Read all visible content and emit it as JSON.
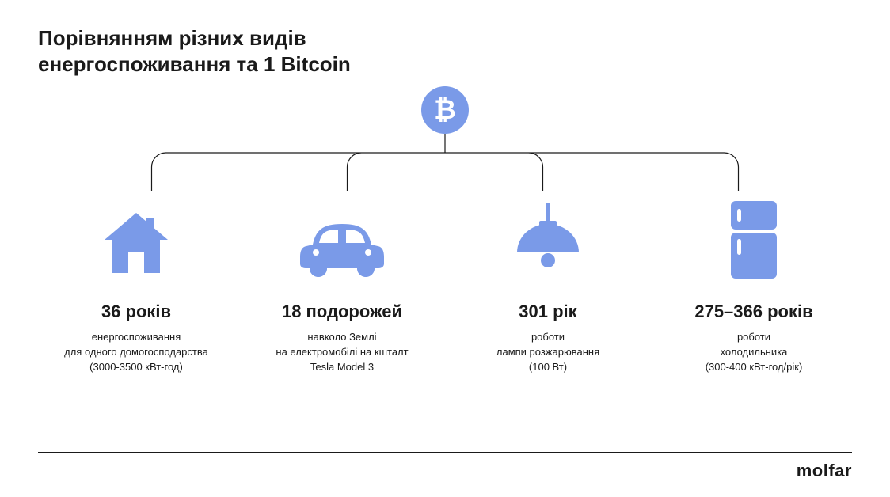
{
  "title": "Порівнянням різних видів\nенергоспоживання та 1 Bitcoin",
  "accent_color": "#7a9ae8",
  "line_color": "#1a1a1a",
  "background_color": "#ffffff",
  "btc_symbol": "₿",
  "connector": {
    "stem_height": 24,
    "arm_height": 46,
    "corner_radius": 18,
    "stroke_width": 1.2
  },
  "items": [
    {
      "icon": "house",
      "value": "36 років",
      "desc": "енергоспоживання\nдля одного домогосподарства\n(3000-3500 кВт-год)"
    },
    {
      "icon": "car",
      "value": "18 подорожей",
      "desc": "навколо Землі\nна електромобілі на кшталт\nTesla Model 3"
    },
    {
      "icon": "lamp",
      "value": "301 рік",
      "desc": "роботи\nлампи розжарювання\n(100 Вт)"
    },
    {
      "icon": "fridge",
      "value": "275–366 років",
      "desc": "роботи\nхолодильника\n(300-400 кВт-год/рік)"
    }
  ],
  "brand": "molfar"
}
